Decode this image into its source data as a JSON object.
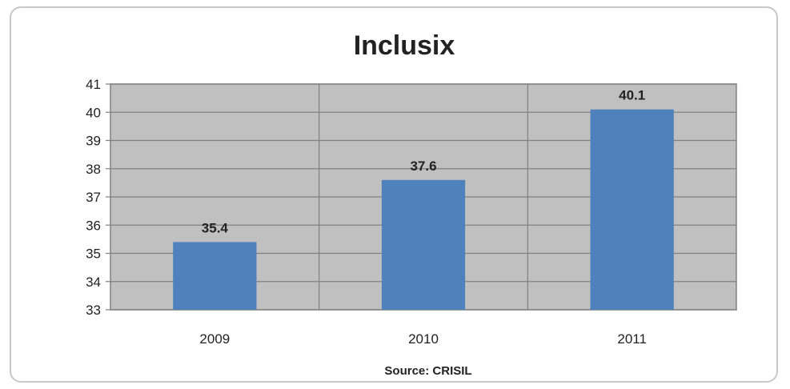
{
  "chart_data": {
    "type": "bar",
    "title": "Inclusix",
    "categories": [
      "2009",
      "2010",
      "2011"
    ],
    "values": [
      35.4,
      37.6,
      40.1
    ],
    "data_labels": [
      "35.4",
      "37.6",
      "40.1"
    ],
    "ylim": [
      33,
      41
    ],
    "yticks": [
      "33",
      "34",
      "35",
      "36",
      "37",
      "38",
      "39",
      "40",
      "41"
    ],
    "xlabel": "",
    "ylabel": "",
    "source": "Source: CRISIL",
    "grid": true,
    "legend": "none",
    "colors": {
      "bar": "#4f81bd",
      "plot_area": "#c0c0c0",
      "gridline": "#808080"
    }
  }
}
